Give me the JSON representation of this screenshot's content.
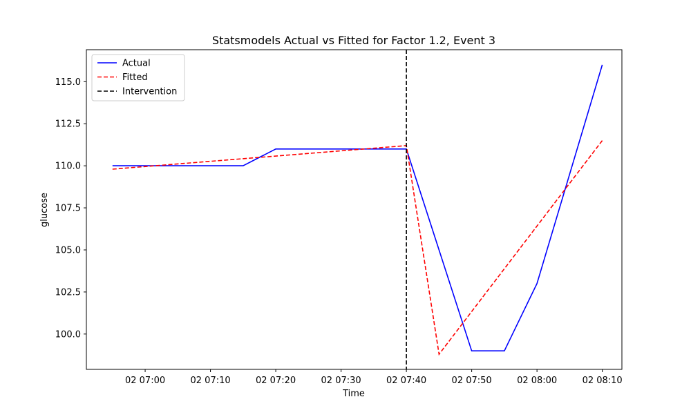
{
  "chart_data": {
    "type": "line",
    "title": "Statsmodels Actual vs Fitted for Factor 1.2, Event 3",
    "xlabel": "Time",
    "ylabel": "glucose",
    "x": [
      "06:55",
      "07:00",
      "07:05",
      "07:10",
      "07:15",
      "07:20",
      "07:25",
      "07:30",
      "07:35",
      "07:40",
      "07:45",
      "07:50",
      "07:55",
      "08:00",
      "08:05",
      "08:10"
    ],
    "xlim": [
      "06:51",
      "08:13"
    ],
    "ylim": [
      97.9,
      116.9
    ],
    "x_ticks": [
      "02 07:00",
      "02 07:10",
      "02 07:20",
      "02 07:30",
      "02 07:40",
      "02 07:50",
      "02 08:00",
      "02 08:10"
    ],
    "y_ticks": [
      "100.0",
      "102.5",
      "105.0",
      "107.5",
      "110.0",
      "112.5",
      "115.0"
    ],
    "series": [
      {
        "name": "Actual",
        "color": "#0000ff",
        "style": "solid",
        "x": [
          "06:55",
          "07:15",
          "07:20",
          "07:40",
          "07:50",
          "07:55",
          "08:00",
          "08:10"
        ],
        "values": [
          110.0,
          110.0,
          111.0,
          111.0,
          99.0,
          99.0,
          103.0,
          116.0
        ]
      },
      {
        "name": "Fitted",
        "color": "#ff0000",
        "style": "dashed",
        "x": [
          "06:55",
          "07:40",
          "07:45",
          "08:10"
        ],
        "values": [
          109.8,
          111.2,
          98.8,
          111.5
        ]
      }
    ],
    "vlines": [
      {
        "name": "Intervention",
        "x": "07:40",
        "color": "#000000",
        "style": "dashed"
      }
    ],
    "legend": {
      "placement": "top-left",
      "entries": [
        "Actual",
        "Fitted",
        "Intervention"
      ]
    },
    "grid": false
  }
}
